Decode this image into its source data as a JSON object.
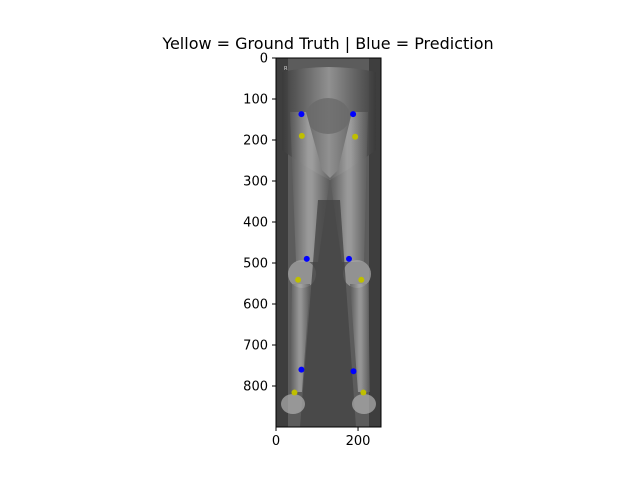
{
  "chart_data": {
    "type": "scatter",
    "title": "Yellow = Ground Truth | Blue = Prediction",
    "xlabel": "",
    "ylabel": "",
    "xlim": [
      0,
      256
    ],
    "ylim": [
      900,
      0
    ],
    "x_ticks": [
      0,
      200
    ],
    "y_ticks": [
      0,
      100,
      200,
      300,
      400,
      500,
      600,
      700,
      800
    ],
    "background": "grayscale x-ray image of the legs (hips to ankles)",
    "image_overlay_text": "R",
    "series": [
      {
        "key": "ground_truth",
        "color": "#bfbf00",
        "points": [
          {
            "x": 63,
            "y": 190
          },
          {
            "x": 193,
            "y": 192
          },
          {
            "x": 54,
            "y": 541
          },
          {
            "x": 208,
            "y": 541
          },
          {
            "x": 45,
            "y": 816
          },
          {
            "x": 213,
            "y": 816
          }
        ]
      },
      {
        "key": "prediction",
        "color": "#0000ff",
        "points": [
          {
            "x": 62,
            "y": 137
          },
          {
            "x": 188,
            "y": 137
          },
          {
            "x": 75,
            "y": 490
          },
          {
            "x": 178,
            "y": 490
          },
          {
            "x": 62,
            "y": 760
          },
          {
            "x": 189,
            "y": 764
          }
        ]
      }
    ]
  }
}
